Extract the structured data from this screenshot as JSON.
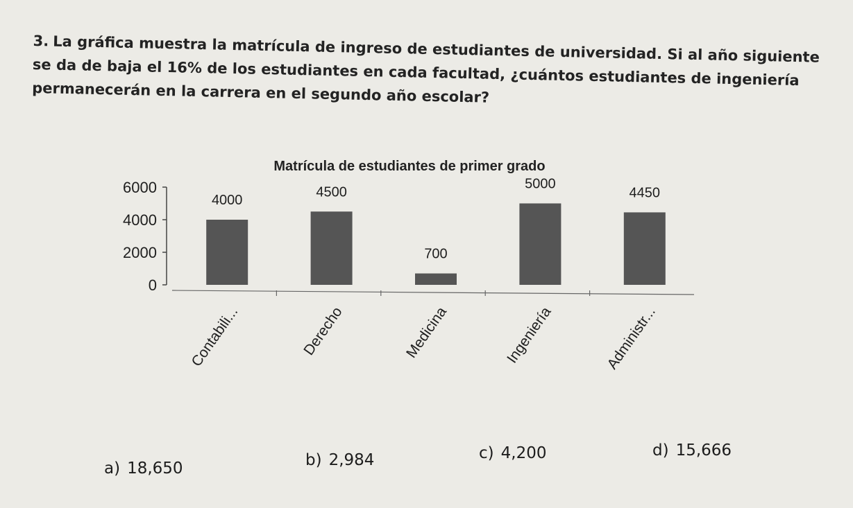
{
  "question": {
    "number": "3.",
    "text": "La gráfica muestra la matrícula de ingreso de estudiantes de universidad. Si al año siguiente se da de baja el 16% de los estudiantes en cada facultad, ¿cuántos estudiantes de ingeniería permanecerán en la carrera en el segundo año escolar?"
  },
  "chart_data": {
    "type": "bar",
    "title": "Matrícula de estudiantes de primer grado",
    "categories": [
      "Contabili...",
      "Derecho",
      "Medicina",
      "Ingeniería",
      "Administr..."
    ],
    "values": [
      4000,
      4500,
      700,
      5000,
      4450
    ],
    "data_labels": [
      "4000",
      "4500",
      "700",
      "5000",
      "4450"
    ],
    "ylim": [
      0,
      6000
    ],
    "yticks": [
      0,
      2000,
      4000,
      6000
    ],
    "ytick_labels": [
      "0",
      "2000",
      "4000",
      "6000"
    ],
    "xlabel": "",
    "ylabel": "",
    "grid": false,
    "bar_color": "#555555"
  },
  "options": [
    {
      "letter": "a)",
      "value": "18,650"
    },
    {
      "letter": "b)",
      "value": "2,984"
    },
    {
      "letter": "c)",
      "value": "4,200"
    },
    {
      "letter": "d)",
      "value": "15,666"
    }
  ]
}
